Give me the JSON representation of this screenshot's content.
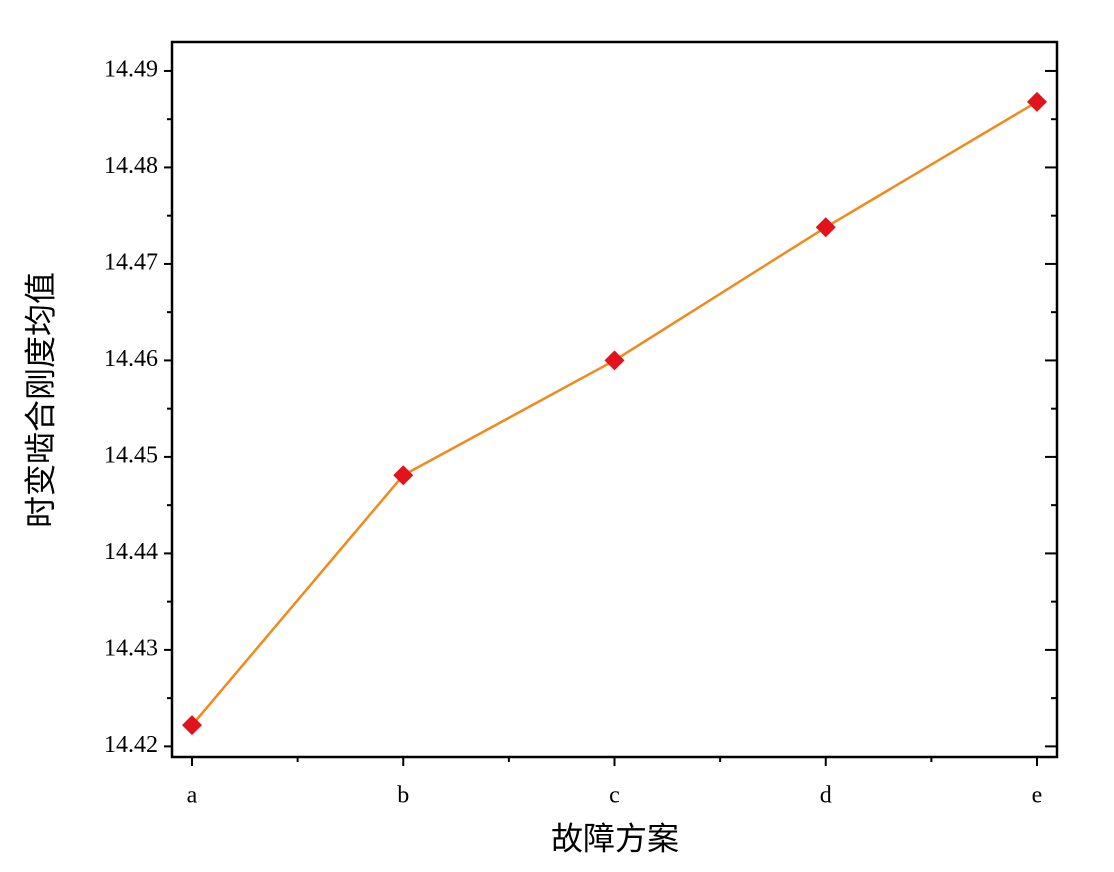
{
  "chart_data": {
    "type": "line",
    "x_label": "故障方案",
    "y_label": "时变啮合刚度均值",
    "categories": [
      "a",
      "b",
      "c",
      "d",
      "e"
    ],
    "series": [
      {
        "color": "#f08a1c",
        "marker_color": "#e3131b",
        "values": [
          14.4222,
          14.4481,
          14.46,
          14.4738,
          14.4868
        ]
      }
    ],
    "ylim": [
      14.4189,
      14.493
    ],
    "yticks": [
      14.42,
      14.43,
      14.44,
      14.45,
      14.46,
      14.47,
      14.48,
      14.49
    ]
  }
}
